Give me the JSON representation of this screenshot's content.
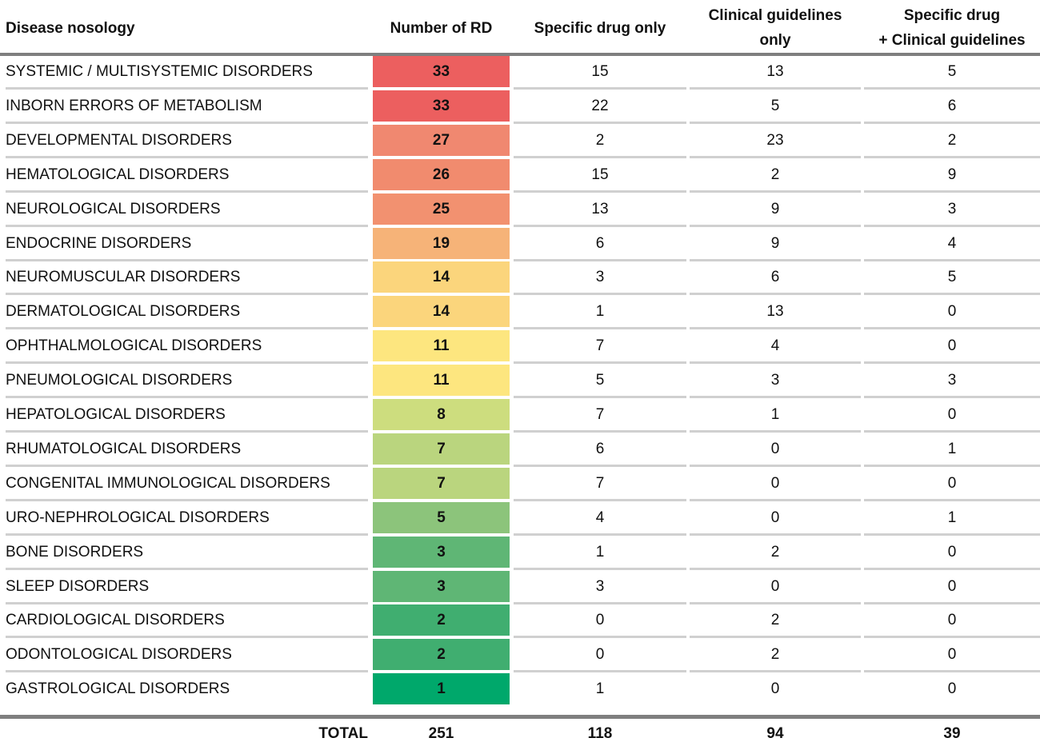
{
  "header": {
    "col0": "Disease nosology",
    "col1": "Number of RD",
    "col2": "Specific drug only",
    "col3": "Clinical guidelines\nonly",
    "col4": "Specific drug\n+ Clinical guidelines"
  },
  "rows": [
    {
      "name": "SYSTEMIC / MULTISYSTEMIC DISORDERS",
      "rd": "33",
      "drug": "15",
      "guide": "13",
      "both": "5",
      "color": "#ec5f5f"
    },
    {
      "name": "INBORN ERRORS OF METABOLISM",
      "rd": "33",
      "drug": "22",
      "guide": "5",
      "both": "6",
      "color": "#ec5f5f"
    },
    {
      "name": "DEVELOPMENTAL DISORDERS",
      "rd": "27",
      "drug": "2",
      "guide": "23",
      "both": "2",
      "color": "#f08870"
    },
    {
      "name": "HEMATOLOGICAL DISORDERS",
      "rd": "26",
      "drug": "15",
      "guide": "2",
      "both": "9",
      "color": "#f18b6e"
    },
    {
      "name": "NEUROLOGICAL DISORDERS",
      "rd": "25",
      "drug": "13",
      "guide": "9",
      "both": "3",
      "color": "#f29170"
    },
    {
      "name": "ENDOCRINE DISORDERS",
      "rd": "19",
      "drug": "6",
      "guide": "9",
      "both": "4",
      "color": "#f6b378"
    },
    {
      "name": "NEUROMUSCULAR DISORDERS",
      "rd": "14",
      "drug": "3",
      "guide": "6",
      "both": "5",
      "color": "#fbd57c"
    },
    {
      "name": "DERMATOLOGICAL DISORDERS",
      "rd": "14",
      "drug": "1",
      "guide": "13",
      "both": "0",
      "color": "#fbd57c"
    },
    {
      "name": "OPHTHALMOLOGICAL DISORDERS",
      "rd": "11",
      "drug": "7",
      "guide": "4",
      "both": "0",
      "color": "#fde67f"
    },
    {
      "name": "PNEUMOLOGICAL DISORDERS",
      "rd": "11",
      "drug": "5",
      "guide": "3",
      "both": "3",
      "color": "#fde67f"
    },
    {
      "name": "HEPATOLOGICAL DISORDERS",
      "rd": "8",
      "drug": "7",
      "guide": "1",
      "both": "0",
      "color": "#cddd7e"
    },
    {
      "name": "RHUMATOLOGICAL DISORDERS",
      "rd": "7",
      "drug": "6",
      "guide": "0",
      "both": "1",
      "color": "#bad57e"
    },
    {
      "name": "CONGENITAL IMMUNOLOGICAL DISORDERS",
      "rd": "7",
      "drug": "7",
      "guide": "0",
      "both": "0",
      "color": "#bad57e"
    },
    {
      "name": "URO-NEPHROLOGICAL DISORDERS",
      "rd": "5",
      "drug": "4",
      "guide": "0",
      "both": "1",
      "color": "#8cc47b"
    },
    {
      "name": "BONE DISORDERS",
      "rd": "3",
      "drug": "1",
      "guide": "2",
      "both": "0",
      "color": "#5fb675"
    },
    {
      "name": "SLEEP DISORDERS",
      "rd": "3",
      "drug": "3",
      "guide": "0",
      "both": "0",
      "color": "#5fb675"
    },
    {
      "name": "CARDIOLOGICAL DISORDERS",
      "rd": "2",
      "drug": "0",
      "guide": "2",
      "both": "0",
      "color": "#40ae70"
    },
    {
      "name": "ODONTOLOGICAL DISORDERS",
      "rd": "2",
      "drug": "0",
      "guide": "2",
      "both": "0",
      "color": "#40ae70"
    },
    {
      "name": "GASTROLOGICAL DISORDERS",
      "rd": "1",
      "drug": "1",
      "guide": "0",
      "both": "0",
      "color": "#00a86b"
    }
  ],
  "total": {
    "label": "TOTAL",
    "rd": "251",
    "drug": "118",
    "guide": "94",
    "both": "39"
  }
}
